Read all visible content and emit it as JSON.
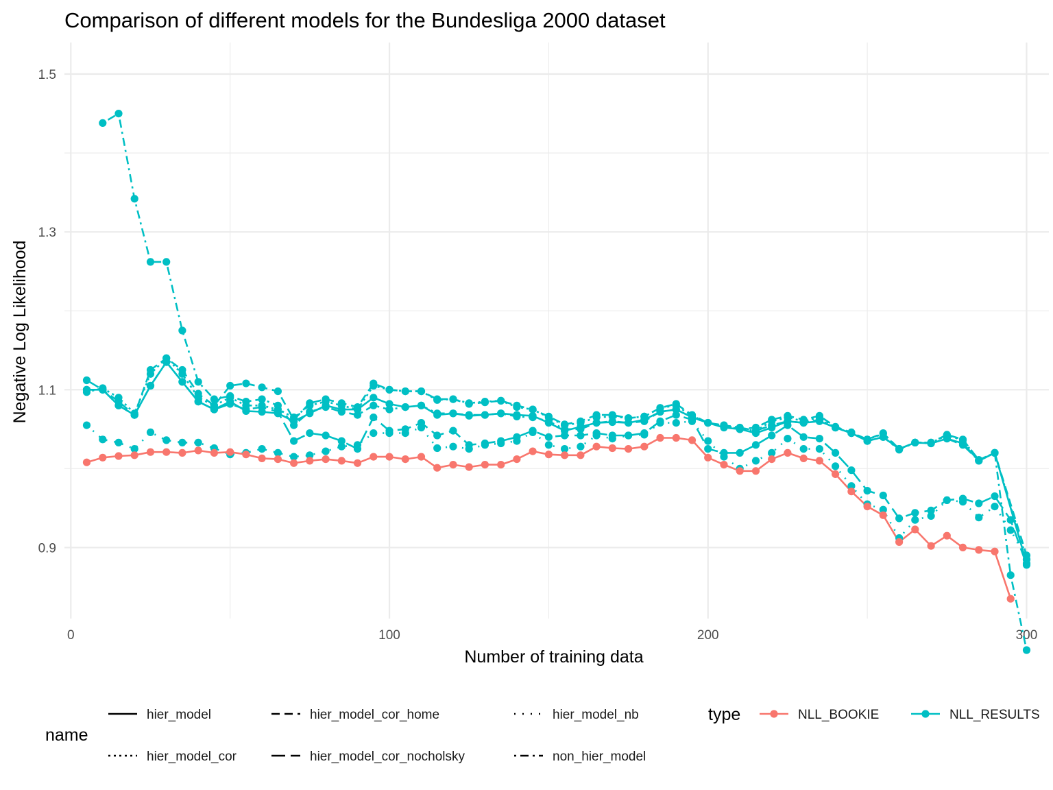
{
  "chart_data": {
    "type": "line",
    "title": "Comparison of different models for the Bundesliga 2000 dataset",
    "xlabel": "Number of training data",
    "ylabel": "Negative Log Likelihood",
    "xlim": [
      -2,
      307
    ],
    "ylim": [
      0.81,
      1.54
    ],
    "x_ticks": [
      0,
      100,
      200,
      300
    ],
    "x_tick_labels": [
      "0",
      "100",
      "200",
      "300"
    ],
    "y_ticks": [
      0.9,
      1.1,
      1.3,
      1.5
    ],
    "y_tick_labels": [
      "0.9",
      "1.1",
      "1.3",
      "1.5"
    ],
    "grid": true,
    "legend_placement": "bottom",
    "legends": {
      "name": {
        "title": "name",
        "entries": [
          {
            "label": "hier_model",
            "dash": "solid"
          },
          {
            "label": "hier_model_cor",
            "dash": "dotted"
          },
          {
            "label": "hier_model_cor_home",
            "dash": "dashed"
          },
          {
            "label": "hier_model_cor_nocholsky",
            "dash": "longdash"
          },
          {
            "label": "hier_model_nb",
            "dash": "sparse-dotted"
          },
          {
            "label": "non_hier_model",
            "dash": "dotdash"
          }
        ]
      },
      "type": {
        "title": "type",
        "entries": [
          {
            "label": "NLL_BOOKIE",
            "color": "#F8766D"
          },
          {
            "label": "NLL_RESULTS",
            "color": "#00BFC4"
          }
        ]
      }
    },
    "series": [
      {
        "model": "NLL_BOOKIE",
        "type": "NLL_BOOKIE",
        "color": "#F8766D",
        "dash": "solid",
        "x": [
          5,
          10,
          15,
          20,
          25,
          30,
          35,
          40,
          45,
          50,
          55,
          60,
          65,
          70,
          75,
          80,
          85,
          90,
          95,
          100,
          105,
          110,
          115,
          120,
          125,
          130,
          135,
          140,
          145,
          150,
          155,
          160,
          165,
          170,
          175,
          180,
          185,
          190,
          195,
          200,
          205,
          210,
          215,
          220,
          225,
          230,
          235,
          240,
          245,
          250,
          255,
          260,
          265,
          270,
          275,
          280,
          285,
          290,
          295
        ],
        "y": [
          1.008,
          1.014,
          1.016,
          1.017,
          1.021,
          1.021,
          1.02,
          1.023,
          1.02,
          1.021,
          1.018,
          1.013,
          1.012,
          1.007,
          1.01,
          1.012,
          1.01,
          1.007,
          1.015,
          1.015,
          1.012,
          1.015,
          1.001,
          1.005,
          1.002,
          1.005,
          1.005,
          1.012,
          1.022,
          1.018,
          1.017,
          1.017,
          1.028,
          1.026,
          1.025,
          1.028,
          1.039,
          1.039,
          1.036,
          1.014,
          1.005,
          0.997,
          0.997,
          1.012,
          1.02,
          1.013,
          1.01,
          0.993,
          0.971,
          0.952,
          0.941,
          0.907,
          0.923,
          0.902,
          0.915,
          0.9,
          0.897,
          0.895,
          0.835
        ]
      },
      {
        "model": "hier_model",
        "type": "NLL_RESULTS",
        "color": "#00BFC4",
        "dash": "solid",
        "x": [
          5,
          10,
          15,
          20,
          25,
          30,
          35,
          40,
          45,
          50,
          55,
          60,
          65,
          70,
          75,
          80,
          85,
          90,
          95,
          100,
          105,
          110,
          115,
          120,
          125,
          130,
          135,
          140,
          145,
          150,
          155,
          160,
          165,
          170,
          175,
          180,
          185,
          190,
          195,
          200,
          205,
          210,
          215,
          220,
          225,
          230,
          235,
          240,
          245,
          250,
          255,
          260,
          265,
          270,
          275,
          280,
          285,
          290,
          300
        ],
        "y": [
          1.1,
          1.1,
          1.08,
          1.068,
          1.105,
          1.135,
          1.11,
          1.085,
          1.075,
          1.085,
          1.073,
          1.072,
          1.07,
          1.06,
          1.07,
          1.08,
          1.075,
          1.075,
          1.09,
          1.082,
          1.078,
          1.08,
          1.068,
          1.07,
          1.067,
          1.068,
          1.07,
          1.068,
          1.067,
          1.058,
          1.048,
          1.053,
          1.058,
          1.059,
          1.058,
          1.062,
          1.072,
          1.075,
          1.065,
          1.058,
          1.052,
          1.05,
          1.045,
          1.052,
          1.06,
          1.058,
          1.06,
          1.052,
          1.045,
          1.035,
          1.04,
          1.025,
          1.033,
          1.032,
          1.038,
          1.032,
          1.01,
          1.02,
          0.88
        ]
      },
      {
        "model": "hier_model_cor",
        "type": "NLL_RESULTS",
        "color": "#00BFC4",
        "dash": "dotted",
        "x": [
          5,
          10,
          15,
          20,
          25,
          30,
          35,
          40,
          45,
          50,
          55,
          60,
          65,
          70,
          75,
          80,
          85,
          90,
          95,
          100,
          105,
          110,
          115,
          120,
          125,
          130,
          135,
          140,
          145,
          150,
          155,
          160,
          165,
          170,
          175,
          180,
          185,
          190,
          195,
          200,
          205,
          210,
          215,
          220,
          225,
          230,
          235,
          240,
          245,
          250,
          255,
          260,
          265,
          270,
          275,
          280,
          285,
          290,
          300
        ],
        "y": [
          1.097,
          1.102,
          1.09,
          1.07,
          1.12,
          1.14,
          1.12,
          1.09,
          1.08,
          1.09,
          1.08,
          1.08,
          1.075,
          1.065,
          1.08,
          1.085,
          1.08,
          1.075,
          1.105,
          1.1,
          1.098,
          1.098,
          1.087,
          1.088,
          1.083,
          1.085,
          1.086,
          1.078,
          1.075,
          1.065,
          1.055,
          1.058,
          1.065,
          1.066,
          1.064,
          1.066,
          1.077,
          1.08,
          1.067,
          1.058,
          1.054,
          1.05,
          1.048,
          1.06,
          1.065,
          1.06,
          1.065,
          1.052,
          1.045,
          1.037,
          1.044,
          1.025,
          1.033,
          1.033,
          1.042,
          1.036,
          1.011,
          1.02,
          0.885
        ]
      },
      {
        "model": "hier_model_cor_home",
        "type": "NLL_RESULTS",
        "color": "#00BFC4",
        "dash": "dashed",
        "x": [
          5,
          10,
          15,
          20,
          25,
          30,
          35,
          40,
          45,
          50,
          55,
          60,
          65,
          70,
          75,
          80,
          85,
          90,
          95,
          100,
          105,
          110,
          115,
          120,
          125,
          130,
          135,
          140,
          145,
          150,
          155,
          160,
          165,
          170,
          175,
          180,
          185,
          190,
          195,
          200,
          205,
          210,
          215,
          220,
          225,
          230,
          235,
          240,
          245,
          250,
          255,
          260,
          265,
          270,
          275,
          280,
          285,
          290,
          300
        ],
        "y": [
          1.1,
          1.1,
          1.085,
          1.068,
          1.125,
          1.14,
          1.125,
          1.095,
          1.08,
          1.105,
          1.108,
          1.103,
          1.098,
          1.062,
          1.083,
          1.088,
          1.083,
          1.078,
          1.108,
          1.1,
          1.098,
          1.098,
          1.088,
          1.088,
          1.082,
          1.084,
          1.086,
          1.08,
          1.075,
          1.066,
          1.056,
          1.06,
          1.068,
          1.068,
          1.064,
          1.066,
          1.077,
          1.082,
          1.068,
          1.058,
          1.055,
          1.05,
          1.052,
          1.062,
          1.067,
          1.062,
          1.067,
          1.053,
          1.046,
          1.037,
          1.045,
          1.025,
          1.033,
          1.033,
          1.043,
          1.037,
          1.011,
          1.02,
          0.89
        ]
      },
      {
        "model": "hier_model_cor_nocholsky",
        "type": "NLL_RESULTS",
        "color": "#00BFC4",
        "dash": "longdash",
        "x": [
          5,
          10,
          15,
          20,
          25,
          30,
          35,
          40,
          45,
          50,
          55,
          60,
          65,
          70,
          75,
          80,
          85,
          90,
          95,
          100,
          105,
          110,
          115,
          120,
          125,
          130,
          135,
          140,
          145,
          150,
          155,
          160,
          165,
          170,
          175,
          180,
          185,
          190,
          195,
          200,
          205,
          210,
          215,
          220,
          225,
          230,
          235,
          240,
          245,
          250,
          255,
          260,
          265,
          270,
          275,
          280,
          285,
          290,
          295,
          300
        ],
        "y": [
          1.112,
          1.1,
          1.08,
          1.068,
          1.105,
          1.135,
          1.11,
          1.085,
          1.075,
          1.082,
          1.075,
          1.078,
          1.072,
          1.035,
          1.045,
          1.042,
          1.035,
          1.025,
          1.065,
          1.048,
          1.05,
          1.058,
          1.042,
          1.048,
          1.03,
          1.032,
          1.035,
          1.04,
          1.048,
          1.04,
          1.042,
          1.042,
          1.045,
          1.042,
          1.042,
          1.045,
          1.06,
          1.068,
          1.062,
          1.025,
          1.02,
          1.02,
          1.03,
          1.042,
          1.055,
          1.04,
          1.038,
          1.02,
          0.998,
          0.972,
          0.966,
          0.937,
          0.944,
          0.947,
          0.96,
          0.962,
          0.956,
          0.965,
          0.935,
          0.878
        ]
      },
      {
        "model": "hier_model_nb",
        "type": "NLL_RESULTS",
        "color": "#00BFC4",
        "dash": "sparse-dotted",
        "x": [
          5,
          10,
          15,
          20,
          25,
          30,
          35,
          40,
          45,
          50,
          55,
          60,
          65,
          70,
          75,
          80,
          85,
          90,
          95,
          100,
          105,
          110,
          115,
          120,
          125,
          130,
          135,
          140,
          145,
          150,
          155,
          160,
          165,
          170,
          175,
          180,
          185,
          190,
          195,
          200,
          205,
          210,
          215,
          220,
          225,
          230,
          235,
          240,
          245,
          250,
          255,
          260,
          265,
          270,
          275,
          280,
          285,
          290,
          295,
          300
        ],
        "y": [
          1.055,
          1.037,
          1.033,
          1.025,
          1.046,
          1.036,
          1.033,
          1.033,
          1.026,
          1.018,
          1.02,
          1.025,
          1.02,
          1.015,
          1.017,
          1.022,
          1.028,
          1.03,
          1.045,
          1.045,
          1.045,
          1.052,
          1.026,
          1.028,
          1.025,
          1.03,
          1.032,
          1.035,
          1.046,
          1.03,
          1.025,
          1.028,
          1.042,
          1.038,
          1.042,
          1.043,
          1.058,
          1.058,
          1.06,
          1.035,
          1.015,
          1.0,
          1.01,
          1.02,
          1.038,
          1.025,
          1.025,
          1.003,
          0.978,
          0.955,
          0.948,
          0.912,
          0.935,
          0.94,
          0.96,
          0.958,
          0.938,
          0.952,
          0.922,
          0.885
        ]
      },
      {
        "model": "non_hier_model",
        "type": "NLL_RESULTS",
        "color": "#00BFC4",
        "dash": "dotdash",
        "x": [
          10,
          15,
          20,
          25,
          30,
          35,
          40,
          45,
          50,
          55,
          60,
          65,
          70,
          75,
          80,
          85,
          90,
          95,
          100,
          105,
          110,
          115,
          120,
          125,
          130,
          135,
          140,
          145,
          150,
          155,
          160,
          165,
          170,
          175,
          180,
          185,
          190,
          195,
          200,
          205,
          210,
          215,
          220,
          225,
          230,
          235,
          240,
          245,
          250,
          255,
          260,
          265,
          270,
          275,
          280,
          285,
          290,
          295,
          300
        ],
        "y": [
          1.438,
          1.45,
          1.342,
          1.262,
          1.262,
          1.175,
          1.11,
          1.088,
          1.092,
          1.085,
          1.088,
          1.08,
          1.055,
          1.072,
          1.078,
          1.072,
          1.068,
          1.08,
          1.075,
          1.078,
          1.08,
          1.07,
          1.07,
          1.068,
          1.068,
          1.07,
          1.066,
          1.065,
          1.06,
          1.05,
          1.05,
          1.058,
          1.06,
          1.058,
          1.06,
          1.072,
          1.075,
          1.065,
          1.058,
          1.055,
          1.052,
          1.048,
          1.055,
          1.06,
          1.058,
          1.062,
          1.052,
          1.045,
          1.035,
          1.04,
          1.024,
          1.033,
          1.032,
          1.038,
          1.03,
          1.01,
          1.02,
          0.865,
          0.77
        ]
      }
    ]
  }
}
